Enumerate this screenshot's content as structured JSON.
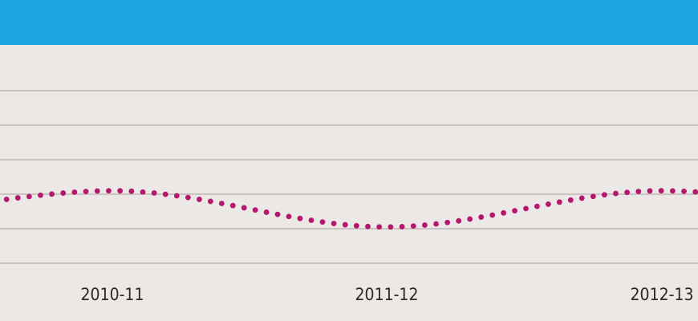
{
  "header": {
    "color": "#1ba6e0"
  },
  "chart_data": {
    "type": "line",
    "categories": [
      "2010-11",
      "2011-12",
      "2012-13"
    ],
    "series": [
      {
        "values": [
          2.1,
          1.05,
          2.1
        ],
        "color": "#b5176f",
        "style": "dotted"
      }
    ],
    "title": "",
    "xlabel": "",
    "ylabel": "",
    "ylim": [
      0,
      5
    ],
    "grid": true,
    "legend": "none",
    "background": "#ece8e5",
    "gridline_color": "#bdb8b5"
  }
}
